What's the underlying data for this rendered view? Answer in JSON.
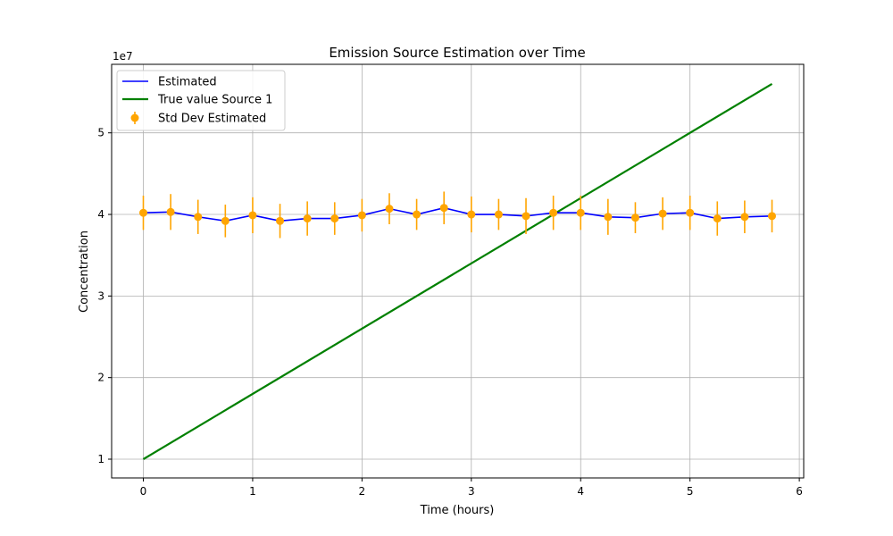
{
  "chart_data": {
    "type": "line",
    "title": "Emission Source Estimation over Time",
    "xlabel": "Time (hours)",
    "ylabel": "Concentration",
    "y_offset_label": "1e7",
    "y_scale": 10000000,
    "xlim": [
      -0.29,
      6.04
    ],
    "ylim": [
      0.77,
      5.84
    ],
    "x_ticks": [
      0,
      1,
      2,
      3,
      4,
      5,
      6
    ],
    "y_ticks": [
      1,
      2,
      3,
      4,
      5
    ],
    "grid": true,
    "legend_position": "upper left",
    "colors": {
      "estimated": "#0000ff",
      "true_value": "#008000",
      "std_dev": "#ffa500",
      "grid": "#b0b0b0"
    },
    "series": [
      {
        "name": "Estimated",
        "kind": "line",
        "x": [
          0,
          0.25,
          0.5,
          0.75,
          1.0,
          1.25,
          1.5,
          1.75,
          2.0,
          2.25,
          2.5,
          2.75,
          3.0,
          3.25,
          3.5,
          3.75,
          4.0,
          4.25,
          4.5,
          4.75,
          5.0,
          5.25,
          5.5,
          5.75
        ],
        "y": [
          4.02,
          4.03,
          3.97,
          3.92,
          3.99,
          3.92,
          3.95,
          3.95,
          3.99,
          4.07,
          4.0,
          4.08,
          4.0,
          4.0,
          3.98,
          4.02,
          4.02,
          3.97,
          3.96,
          4.01,
          4.02,
          3.95,
          3.97,
          3.98
        ]
      },
      {
        "name": "True value Source 1",
        "kind": "line",
        "x": [
          0,
          5.75
        ],
        "y": [
          1.0,
          5.6
        ]
      },
      {
        "name": "Std Dev Estimated",
        "kind": "errorbar",
        "x": [
          0,
          0.25,
          0.5,
          0.75,
          1.0,
          1.25,
          1.5,
          1.75,
          2.0,
          2.25,
          2.5,
          2.75,
          3.0,
          3.25,
          3.5,
          3.75,
          4.0,
          4.25,
          4.5,
          4.75,
          5.0,
          5.25,
          5.5,
          5.75
        ],
        "y": [
          4.02,
          4.03,
          3.97,
          3.92,
          3.99,
          3.92,
          3.95,
          3.95,
          3.99,
          4.07,
          4.0,
          4.08,
          4.0,
          4.0,
          3.98,
          4.02,
          4.02,
          3.97,
          3.96,
          4.01,
          4.02,
          3.95,
          3.97,
          3.98
        ],
        "err": [
          0.21,
          0.22,
          0.21,
          0.2,
          0.22,
          0.21,
          0.21,
          0.2,
          0.2,
          0.19,
          0.19,
          0.2,
          0.22,
          0.19,
          0.22,
          0.21,
          0.21,
          0.22,
          0.19,
          0.2,
          0.21,
          0.21,
          0.2,
          0.2
        ]
      }
    ]
  }
}
